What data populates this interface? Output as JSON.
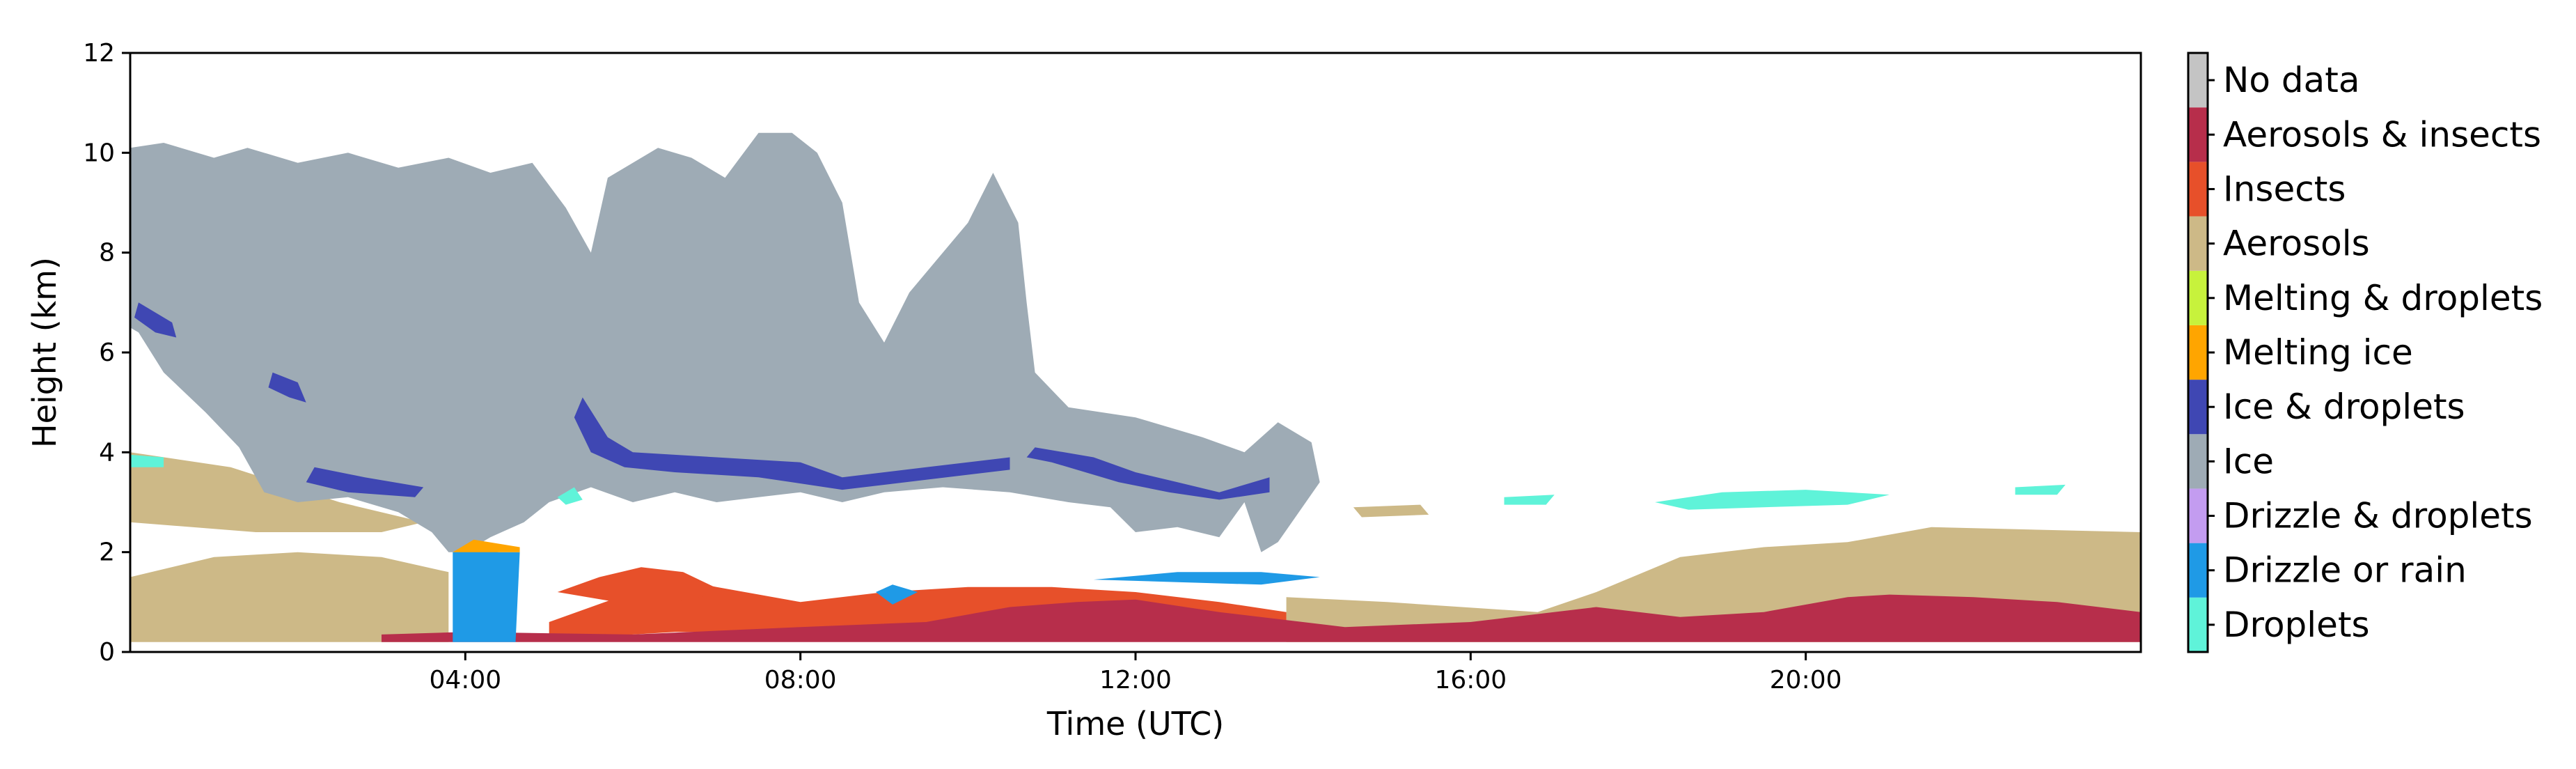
{
  "chart_data": {
    "type": "heatmap",
    "title": "",
    "xlabel": "Time (UTC)",
    "ylabel": "Height (km)",
    "xlim_hours": [
      0,
      24
    ],
    "ylim_km": [
      0,
      12
    ],
    "x_ticks": [
      {
        "value": 4,
        "label": "04:00"
      },
      {
        "value": 8,
        "label": "08:00"
      },
      {
        "value": 12,
        "label": "12:00"
      },
      {
        "value": 16,
        "label": "16:00"
      },
      {
        "value": 20,
        "label": "20:00"
      }
    ],
    "y_ticks": [
      {
        "value": 0,
        "label": "0"
      },
      {
        "value": 2,
        "label": "2"
      },
      {
        "value": 4,
        "label": "4"
      },
      {
        "value": 6,
        "label": "6"
      },
      {
        "value": 8,
        "label": "8"
      },
      {
        "value": 10,
        "label": "10"
      },
      {
        "value": 12,
        "label": "12"
      }
    ],
    "grid": false,
    "legend_position": "right colorbar",
    "classes": [
      {
        "key": "droplets",
        "name": "Droplets",
        "color": "#5ff3d9"
      },
      {
        "key": "drizzle_rain",
        "name": "Drizzle or rain",
        "color": "#1f9ae6"
      },
      {
        "key": "drizzle_droplets",
        "name": "Drizzle & droplets",
        "color": "#c39cf0"
      },
      {
        "key": "ice",
        "name": "Ice",
        "color": "#9eabb5"
      },
      {
        "key": "ice_droplets",
        "name": "Ice & droplets",
        "color": "#3f47b3"
      },
      {
        "key": "melting_ice",
        "name": "Melting ice",
        "color": "#ffa500"
      },
      {
        "key": "melting_droplets",
        "name": "Melting & droplets",
        "color": "#c7f23c"
      },
      {
        "key": "aerosols",
        "name": "Aerosols",
        "color": "#cdb987"
      },
      {
        "key": "insects",
        "name": "Insects",
        "color": "#e7502a"
      },
      {
        "key": "aerosols_insects",
        "name": "Aerosols & insects",
        "color": "#b72e4b"
      },
      {
        "key": "no_data",
        "name": "No data",
        "color": "#c4c4c4"
      }
    ],
    "regions": [
      {
        "class": "aerosols",
        "points": [
          [
            0,
            0.2
          ],
          [
            0,
            1.5
          ],
          [
            1,
            1.9
          ],
          [
            2,
            2.0
          ],
          [
            3,
            1.9
          ],
          [
            3.8,
            1.6
          ],
          [
            3.8,
            0.2
          ]
        ]
      },
      {
        "class": "aerosols",
        "points": [
          [
            0,
            2.6
          ],
          [
            0,
            4.0
          ],
          [
            1.2,
            3.7
          ],
          [
            2.5,
            3.0
          ],
          [
            3.5,
            2.6
          ],
          [
            3,
            2.4
          ],
          [
            1.5,
            2.4
          ]
        ]
      },
      {
        "class": "aerosols",
        "points": [
          [
            13.8,
            0.2
          ],
          [
            13.8,
            1.1
          ],
          [
            15,
            1.0
          ],
          [
            16.8,
            0.8
          ],
          [
            17.5,
            1.2
          ],
          [
            18.5,
            1.9
          ],
          [
            19.5,
            2.1
          ],
          [
            20.5,
            2.2
          ],
          [
            21.5,
            2.5
          ],
          [
            24,
            2.4
          ],
          [
            24,
            0.2
          ]
        ]
      },
      {
        "class": "ice",
        "points": [
          [
            0,
            6.5
          ],
          [
            0,
            10.1
          ],
          [
            0.4,
            10.2
          ],
          [
            1.0,
            9.9
          ],
          [
            1.4,
            10.1
          ],
          [
            2.0,
            9.8
          ],
          [
            2.6,
            10.0
          ],
          [
            3.2,
            9.7
          ],
          [
            3.8,
            9.9
          ],
          [
            4.3,
            9.6
          ],
          [
            4.8,
            9.8
          ],
          [
            5.2,
            8.9
          ],
          [
            5.5,
            8.0
          ],
          [
            5.7,
            9.5
          ],
          [
            6.3,
            10.1
          ],
          [
            6.7,
            9.9
          ],
          [
            7.1,
            9.5
          ],
          [
            7.5,
            10.4
          ],
          [
            7.9,
            10.4
          ],
          [
            8.2,
            10.0
          ],
          [
            8.5,
            9.0
          ],
          [
            8.7,
            7.0
          ],
          [
            9.0,
            6.2
          ],
          [
            9.3,
            7.2
          ],
          [
            9.6,
            7.8
          ],
          [
            10.0,
            8.6
          ],
          [
            10.3,
            9.6
          ],
          [
            10.6,
            8.6
          ],
          [
            10.7,
            7.0
          ],
          [
            10.8,
            5.6
          ],
          [
            11.2,
            4.9
          ],
          [
            12.0,
            4.7
          ],
          [
            12.8,
            4.3
          ],
          [
            13.3,
            4.0
          ],
          [
            13.7,
            4.6
          ],
          [
            14.1,
            4.2
          ],
          [
            14.2,
            3.4
          ],
          [
            13.7,
            2.2
          ],
          [
            13.5,
            2.0
          ],
          [
            13.3,
            3.0
          ],
          [
            13.0,
            2.3
          ],
          [
            12.5,
            2.5
          ],
          [
            12.0,
            2.4
          ],
          [
            11.7,
            2.9
          ],
          [
            11.2,
            3.0
          ],
          [
            10.5,
            3.2
          ],
          [
            9.7,
            3.3
          ],
          [
            9.0,
            3.2
          ],
          [
            8.5,
            3.0
          ],
          [
            8.0,
            3.2
          ],
          [
            7.5,
            3.1
          ],
          [
            7.0,
            3.0
          ],
          [
            6.5,
            3.2
          ],
          [
            6.0,
            3.0
          ],
          [
            5.5,
            3.3
          ],
          [
            5.0,
            3.0
          ],
          [
            4.7,
            2.6
          ],
          [
            4.3,
            2.3
          ],
          [
            4.0,
            2.0
          ],
          [
            3.8,
            2.0
          ],
          [
            3.6,
            2.4
          ],
          [
            3.2,
            2.8
          ],
          [
            2.6,
            3.1
          ],
          [
            2.0,
            3.0
          ],
          [
            1.6,
            3.2
          ],
          [
            1.3,
            4.1
          ],
          [
            0.9,
            4.8
          ],
          [
            0.4,
            5.6
          ],
          [
            0.1,
            6.4
          ]
        ]
      },
      {
        "class": "insects",
        "points": [
          [
            5.0,
            0.6
          ],
          [
            5.5,
            0.9
          ],
          [
            6.0,
            1.2
          ],
          [
            6.4,
            1.5
          ],
          [
            7.0,
            1.3
          ],
          [
            8.0,
            1.0
          ],
          [
            9.0,
            1.2
          ],
          [
            10.0,
            1.3
          ],
          [
            11.0,
            1.3
          ],
          [
            12.0,
            1.2
          ],
          [
            13.0,
            1.0
          ],
          [
            13.8,
            0.8
          ],
          [
            13.8,
            0.3
          ],
          [
            12.0,
            0.4
          ],
          [
            10.0,
            0.5
          ],
          [
            8.0,
            0.4
          ],
          [
            6.5,
            0.4
          ],
          [
            5.5,
            0.3
          ],
          [
            5.0,
            0.3
          ]
        ]
      },
      {
        "class": "insects",
        "points": [
          [
            5.1,
            1.2
          ],
          [
            5.6,
            1.5
          ],
          [
            6.1,
            1.7
          ],
          [
            6.6,
            1.6
          ],
          [
            7.1,
            1.2
          ],
          [
            6.5,
            1.0
          ],
          [
            5.8,
            1.0
          ]
        ]
      },
      {
        "class": "aerosols_insects",
        "points": [
          [
            3.0,
            0.2
          ],
          [
            3.0,
            0.35
          ],
          [
            4.0,
            0.4
          ],
          [
            6.0,
            0.35
          ],
          [
            8.0,
            0.5
          ],
          [
            9.5,
            0.6
          ],
          [
            10.5,
            0.9
          ],
          [
            11.3,
            1.0
          ],
          [
            12.0,
            1.05
          ],
          [
            13.0,
            0.8
          ],
          [
            14.5,
            0.5
          ],
          [
            16.0,
            0.6
          ],
          [
            17.5,
            0.9
          ],
          [
            18.5,
            0.7
          ],
          [
            19.5,
            0.8
          ],
          [
            20.5,
            1.1
          ],
          [
            21.0,
            1.15
          ],
          [
            22.0,
            1.1
          ],
          [
            23.0,
            1.0
          ],
          [
            24.0,
            0.8
          ],
          [
            24.0,
            0.2
          ]
        ]
      },
      {
        "class": "drizzle_rain",
        "points": [
          [
            3.85,
            0.2
          ],
          [
            3.85,
            2.0
          ],
          [
            4.1,
            2.05
          ],
          [
            4.4,
            2.0
          ],
          [
            4.65,
            2.0
          ],
          [
            4.6,
            0.2
          ]
        ]
      },
      {
        "class": "melting_ice",
        "points": [
          [
            3.85,
            2.0
          ],
          [
            4.1,
            2.25
          ],
          [
            4.65,
            2.1
          ],
          [
            4.65,
            2.0
          ]
        ]
      },
      {
        "class": "drizzle_rain",
        "points": [
          [
            11.5,
            1.45
          ],
          [
            12.5,
            1.6
          ],
          [
            13.5,
            1.6
          ],
          [
            14.2,
            1.5
          ],
          [
            13.5,
            1.35
          ],
          [
            12.5,
            1.4
          ]
        ]
      },
      {
        "class": "drizzle_rain",
        "points": [
          [
            8.9,
            1.2
          ],
          [
            9.1,
            1.35
          ],
          [
            9.4,
            1.2
          ],
          [
            9.1,
            0.95
          ]
        ]
      },
      {
        "class": "ice_droplets",
        "points": [
          [
            10.8,
            4.1
          ],
          [
            11.5,
            3.9
          ],
          [
            12.0,
            3.6
          ],
          [
            12.5,
            3.4
          ],
          [
            13.0,
            3.2
          ],
          [
            13.6,
            3.5
          ],
          [
            13.6,
            3.2
          ],
          [
            13.0,
            3.05
          ],
          [
            12.4,
            3.2
          ],
          [
            11.8,
            3.4
          ],
          [
            11.0,
            3.8
          ],
          [
            10.7,
            3.9
          ]
        ]
      },
      {
        "class": "ice_droplets",
        "points": [
          [
            5.4,
            5.1
          ],
          [
            5.7,
            4.3
          ],
          [
            6.0,
            4.0
          ],
          [
            7.0,
            3.9
          ],
          [
            8.0,
            3.8
          ],
          [
            8.5,
            3.5
          ],
          [
            9.5,
            3.7
          ],
          [
            10.5,
            3.9
          ],
          [
            10.5,
            3.65
          ],
          [
            9.5,
            3.45
          ],
          [
            8.5,
            3.25
          ],
          [
            7.5,
            3.5
          ],
          [
            6.5,
            3.6
          ],
          [
            5.9,
            3.7
          ],
          [
            5.5,
            4.0
          ],
          [
            5.3,
            4.7
          ]
        ]
      },
      {
        "class": "ice_droplets",
        "points": [
          [
            2.2,
            3.7
          ],
          [
            2.8,
            3.5
          ],
          [
            3.5,
            3.3
          ],
          [
            3.4,
            3.1
          ],
          [
            2.6,
            3.2
          ],
          [
            2.1,
            3.4
          ]
        ]
      },
      {
        "class": "ice_droplets",
        "points": [
          [
            0.1,
            7.0
          ],
          [
            0.5,
            6.6
          ],
          [
            0.55,
            6.3
          ],
          [
            0.3,
            6.4
          ],
          [
            0.05,
            6.7
          ]
        ]
      },
      {
        "class": "ice_droplets",
        "points": [
          [
            1.7,
            5.6
          ],
          [
            2.0,
            5.4
          ],
          [
            2.1,
            5.0
          ],
          [
            1.9,
            5.1
          ],
          [
            1.65,
            5.3
          ]
        ]
      },
      {
        "class": "droplets",
        "points": [
          [
            16.4,
            3.1
          ],
          [
            17.0,
            3.15
          ],
          [
            16.9,
            2.95
          ],
          [
            16.4,
            2.95
          ]
        ]
      },
      {
        "class": "droplets",
        "points": [
          [
            18.2,
            3.0
          ],
          [
            19.0,
            3.2
          ],
          [
            20.0,
            3.25
          ],
          [
            21.0,
            3.15
          ],
          [
            20.5,
            2.95
          ],
          [
            19.5,
            2.9
          ],
          [
            18.6,
            2.85
          ]
        ]
      },
      {
        "class": "droplets",
        "points": [
          [
            22.5,
            3.3
          ],
          [
            23.1,
            3.35
          ],
          [
            23.0,
            3.15
          ],
          [
            22.5,
            3.15
          ]
        ]
      },
      {
        "class": "droplets",
        "points": [
          [
            0,
            3.95
          ],
          [
            0.4,
            3.9
          ],
          [
            0.4,
            3.7
          ],
          [
            0,
            3.7
          ]
        ]
      },
      {
        "class": "droplets",
        "points": [
          [
            5.1,
            3.1
          ],
          [
            5.3,
            3.3
          ],
          [
            5.4,
            3.05
          ],
          [
            5.2,
            2.95
          ]
        ]
      },
      {
        "class": "aerosols",
        "points": [
          [
            14.6,
            2.9
          ],
          [
            15.4,
            2.95
          ],
          [
            15.5,
            2.75
          ],
          [
            14.7,
            2.7
          ]
        ]
      }
    ]
  }
}
